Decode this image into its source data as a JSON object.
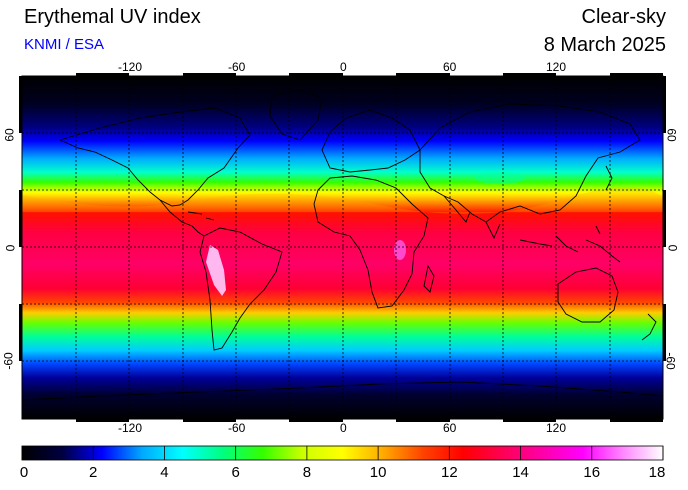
{
  "header": {
    "title": "Erythemal UV index",
    "subtitle": "KNMI / ESA",
    "sky_condition": "Clear-sky",
    "date": "8 March 2025"
  },
  "map": {
    "projection": "equirectangular",
    "lon_range": [
      -180,
      180
    ],
    "lat_range": [
      -90,
      90
    ],
    "lon_ticks": [
      "-120",
      "-60",
      "0",
      "60",
      "120"
    ],
    "lat_ticks": [
      "60",
      "0",
      "-60"
    ],
    "gridlines": "dashed every 30 degrees",
    "coastlines": true
  },
  "colorbar": {
    "ticks": [
      "0",
      "2",
      "4",
      "6",
      "8",
      "10",
      "12",
      "14",
      "16",
      "18"
    ],
    "range": [
      0,
      18
    ],
    "colors": [
      "#000000",
      "#000040",
      "#0000ff",
      "#00aaff",
      "#00ffff",
      "#00ff80",
      "#33ff00",
      "#ccff00",
      "#ffff00",
      "#ffaa00",
      "#ff4400",
      "#ff0000",
      "#ff0055",
      "#ff00aa",
      "#ff00ff",
      "#ff88ff",
      "#ffffff"
    ]
  }
}
